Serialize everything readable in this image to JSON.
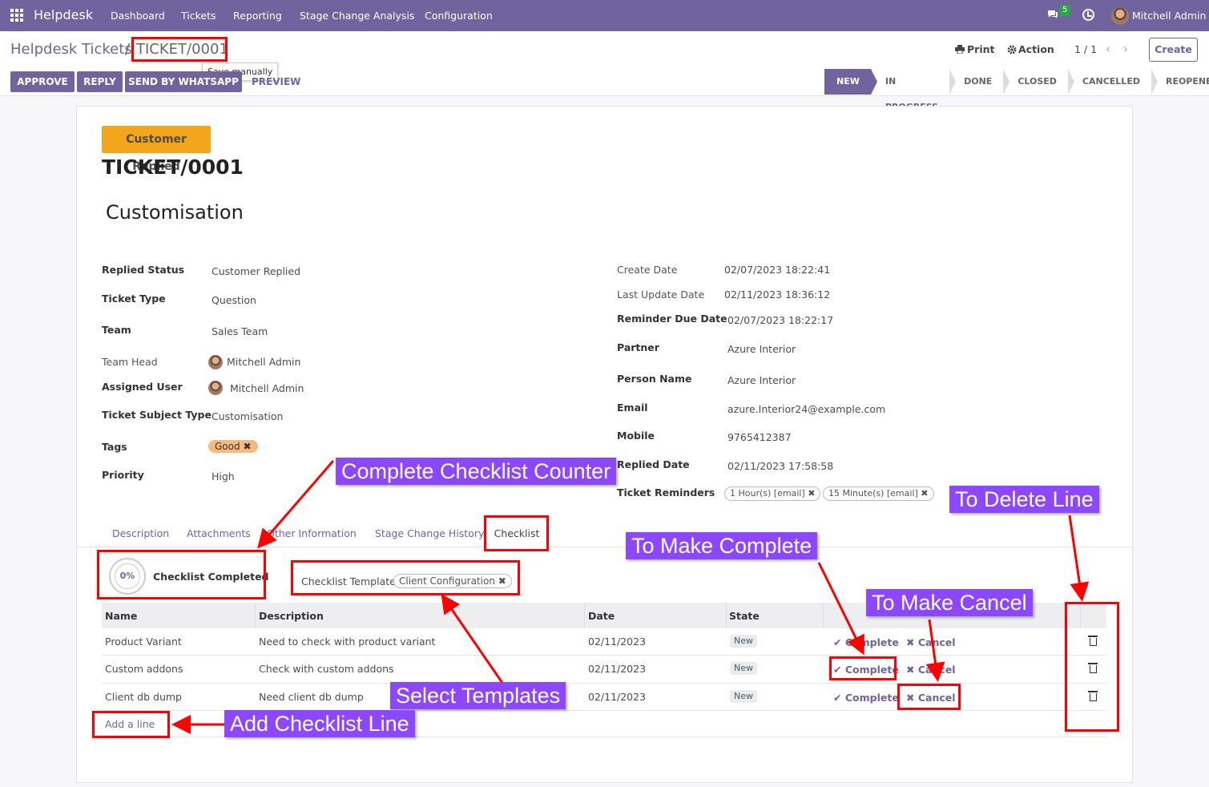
{
  "topbar": {
    "app_name": "Helpdesk",
    "menu": [
      "Dashboard",
      "Tickets",
      "Reporting",
      "Stage Change Analysis",
      "Configuration"
    ],
    "chat_count": "5",
    "user": "Mitchell Admin"
  },
  "breadcrumb": {
    "parent": "Helpdesk Tickets",
    "separator": "/",
    "current": "TICKET/0001",
    "tooltip": "Save manually"
  },
  "toolbar": {
    "print": "Print",
    "action": "Action",
    "pager": "1 / 1",
    "create": "Create"
  },
  "buttons": {
    "approve": "APPROVE",
    "reply": "REPLY",
    "whatsapp": "SEND BY WHATSAPP",
    "preview": "PREVIEW"
  },
  "stages": [
    "NEW",
    "IN PROGRESS",
    "DONE",
    "CLOSED",
    "CANCELLED",
    "REOPENED"
  ],
  "ribbon": "Customer Replied",
  "ticket_number": "TICKET/0001",
  "subject": "Customisation",
  "left_fields": [
    {
      "label": "Replied Status",
      "value": "Customer Replied"
    },
    {
      "label": "Ticket Type",
      "value": "Question"
    },
    {
      "label": "Team",
      "value": "Sales Team"
    },
    {
      "label": "Team Head",
      "value": "Mitchell Admin"
    },
    {
      "label": "Assigned User",
      "value": "Mitchell Admin"
    },
    {
      "label": "Ticket Subject Type",
      "value": "Customisation"
    },
    {
      "label": "Tags",
      "value": "Good"
    },
    {
      "label": "Priority",
      "value": "High"
    }
  ],
  "right_fields": [
    {
      "label": "Create Date",
      "value": "02/07/2023 18:22:41"
    },
    {
      "label": "Last Update Date",
      "value": "02/11/2023 18:36:12"
    },
    {
      "label": "Reminder Due Date",
      "value": "02/07/2023 18:22:17"
    },
    {
      "label": "Partner",
      "value": "Azure Interior"
    },
    {
      "label": "Person Name",
      "value": "Azure Interior"
    },
    {
      "label": "Email",
      "value": "azure.Interior24@example.com"
    },
    {
      "label": "Mobile",
      "value": "9765412387"
    },
    {
      "label": "Replied Date",
      "value": "02/11/2023 17:58:58"
    },
    {
      "label": "Ticket Reminders",
      "value": ""
    }
  ],
  "reminders": [
    "1 Hour(s) [email]",
    "15 Minute(s) [email]"
  ],
  "tabs": [
    "Description",
    "Attachments",
    "Other Information",
    "Stage Change History",
    "Checklist"
  ],
  "checklist": {
    "percent": "0%",
    "completed_label": "Checklist Completed",
    "template_label": "Checklist Template",
    "template_value": "Client Configuration",
    "headers": [
      "Name",
      "Description",
      "Date",
      "State"
    ],
    "rows": [
      {
        "name": "Product Variant",
        "description": "Need to check with product variant",
        "date": "02/11/2023",
        "state": "New",
        "complete": "Complete",
        "cancel": "Cancel"
      },
      {
        "name": "Custom addons",
        "description": "Check with custom addons",
        "date": "02/11/2023",
        "state": "New",
        "complete": "Complete",
        "cancel": "Cancel"
      },
      {
        "name": "Client db dump",
        "description": "Need client db dump",
        "date": "02/11/2023",
        "state": "New",
        "complete": "Complete",
        "cancel": "Cancel"
      }
    ],
    "add_line": "Add a line"
  },
  "annotations": {
    "counter": "Complete Checklist Counter",
    "delete": "To Delete Line",
    "complete": "To Make Complete",
    "cancel": "To Make Cancel",
    "templates": "Select Templates",
    "add_line": "Add Checklist Line"
  },
  "colors": {
    "brand": "#71639e",
    "ribbon": "#f3a51b",
    "callout": "#8c48ff",
    "highlight": "#ff0000"
  }
}
